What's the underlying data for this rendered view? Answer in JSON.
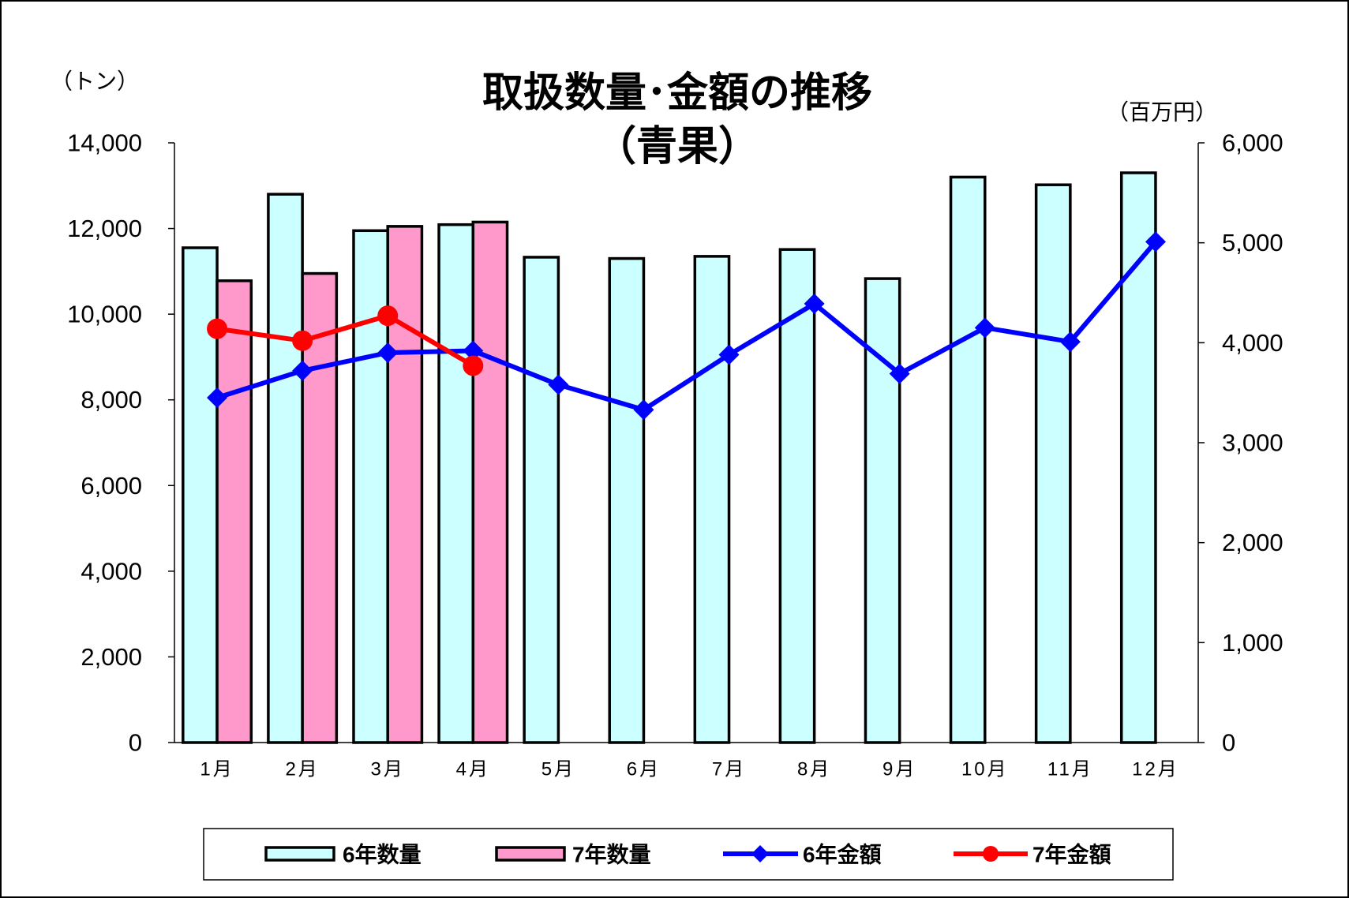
{
  "chart_data": {
    "type": "bar",
    "title": "取扱数量･金額の推移",
    "subtitle": "（青果）",
    "ylabel": "（トン）",
    "y2label": "（百万円）",
    "categories": [
      "1月",
      "2月",
      "3月",
      "4月",
      "5月",
      "6月",
      "7月",
      "8月",
      "9月",
      "10月",
      "11月",
      "12月"
    ],
    "ylim": [
      0,
      14000
    ],
    "y_ticks": [
      "0",
      "2,000",
      "4,000",
      "6,000",
      "8,000",
      "10,000",
      "12,000",
      "14,000"
    ],
    "y2lim": [
      0,
      6000
    ],
    "y2_ticks": [
      "0",
      "1,000",
      "2,000",
      "3,000",
      "4,000",
      "5,000",
      "6,000"
    ],
    "grid": false,
    "legend_position": "bottom",
    "series": [
      {
        "name": "6年数量",
        "type": "bar",
        "axis": "left",
        "color": "#CCFFFF",
        "values": [
          11550,
          12800,
          11950,
          12090,
          11330,
          11300,
          11350,
          11510,
          10830,
          13200,
          13020,
          13300
        ]
      },
      {
        "name": "7年数量",
        "type": "bar",
        "axis": "left",
        "color": "#FF99CC",
        "values": [
          10780,
          10950,
          12050,
          12150,
          null,
          null,
          null,
          null,
          null,
          null,
          null,
          null
        ]
      },
      {
        "name": "6年金額",
        "type": "line",
        "axis": "right",
        "marker": "diamond",
        "color": "#0000FF",
        "values": [
          3450,
          3720,
          3900,
          3920,
          3580,
          3330,
          3880,
          4390,
          3690,
          4150,
          4010,
          5010
        ]
      },
      {
        "name": "7年金額",
        "type": "line",
        "axis": "right",
        "marker": "circle",
        "color": "#FF0000",
        "values": [
          4140,
          4020,
          4270,
          3770,
          null,
          null,
          null,
          null,
          null,
          null,
          null,
          null
        ]
      }
    ]
  }
}
